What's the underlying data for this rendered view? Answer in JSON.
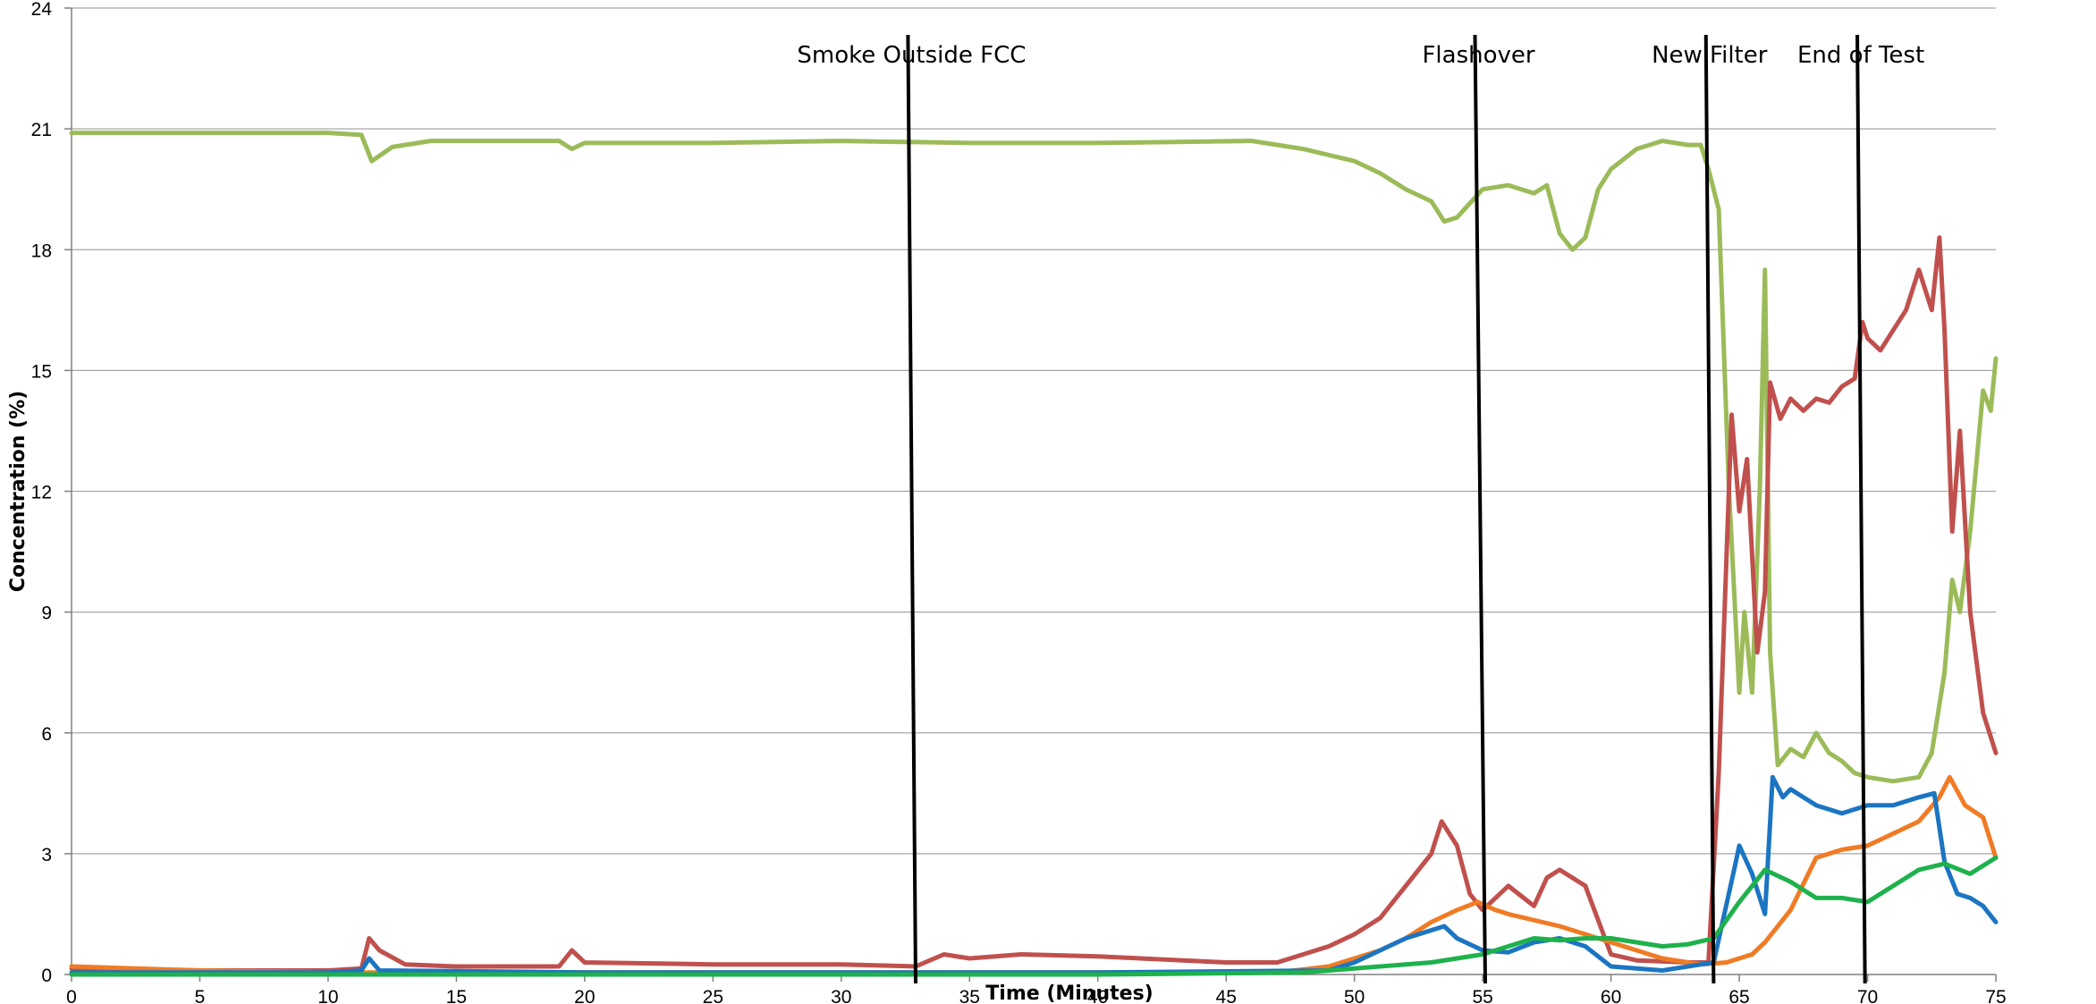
{
  "chart_data": {
    "type": "line",
    "title": "",
    "xlabel": "Time (Minutes)",
    "ylabel": "Concentration (%)",
    "xlim": [
      0,
      75
    ],
    "ylim": [
      0,
      24
    ],
    "x_ticks": [
      0,
      5,
      10,
      15,
      20,
      25,
      30,
      35,
      40,
      45,
      50,
      55,
      60,
      65,
      70,
      75
    ],
    "y_ticks": [
      0,
      3,
      6,
      9,
      12,
      15,
      18,
      21,
      24
    ],
    "grid": true,
    "legend": "none",
    "events": [
      {
        "label": "Smoke Outside FCC",
        "x_top": 32.6,
        "x_bottom": 32.9
      },
      {
        "label": "Flashover",
        "x_top": 54.7,
        "x_bottom": 55.1
      },
      {
        "label": "New Filter",
        "x_top": 63.7,
        "x_bottom": 64.0
      },
      {
        "label": "End of Test",
        "x_top": 69.6,
        "x_bottom": 69.9
      }
    ],
    "series": [
      {
        "color": "#9bbb59",
        "points": [
          [
            0,
            20.9
          ],
          [
            5,
            20.9
          ],
          [
            10,
            20.9
          ],
          [
            11.3,
            20.85
          ],
          [
            11.7,
            20.2
          ],
          [
            12.5,
            20.55
          ],
          [
            14,
            20.7
          ],
          [
            19,
            20.7
          ],
          [
            19.5,
            20.5
          ],
          [
            20,
            20.65
          ],
          [
            25,
            20.65
          ],
          [
            30,
            20.7
          ],
          [
            35,
            20.65
          ],
          [
            40,
            20.65
          ],
          [
            46,
            20.7
          ],
          [
            48,
            20.5
          ],
          [
            50,
            20.2
          ],
          [
            51,
            19.9
          ],
          [
            52,
            19.5
          ],
          [
            53,
            19.2
          ],
          [
            53.5,
            18.7
          ],
          [
            54,
            18.8
          ],
          [
            55,
            19.5
          ],
          [
            56,
            19.6
          ],
          [
            57,
            19.4
          ],
          [
            57.5,
            19.6
          ],
          [
            58,
            18.4
          ],
          [
            58.5,
            18.0
          ],
          [
            59,
            18.3
          ],
          [
            59.5,
            19.5
          ],
          [
            60,
            20.0
          ],
          [
            61,
            20.5
          ],
          [
            62,
            20.7
          ],
          [
            63,
            20.6
          ],
          [
            63.5,
            20.6
          ],
          [
            63.8,
            20.0
          ],
          [
            64.2,
            19.0
          ],
          [
            64.6,
            12.0
          ],
          [
            65,
            7.0
          ],
          [
            65.2,
            9.0
          ],
          [
            65.5,
            7.0
          ],
          [
            65.8,
            12.0
          ],
          [
            66,
            17.5
          ],
          [
            66.2,
            8.0
          ],
          [
            66.5,
            5.2
          ],
          [
            67,
            5.6
          ],
          [
            67.5,
            5.4
          ],
          [
            68,
            6.0
          ],
          [
            68.5,
            5.5
          ],
          [
            69,
            5.3
          ],
          [
            69.5,
            5.0
          ],
          [
            70,
            4.9
          ],
          [
            71,
            4.8
          ],
          [
            72,
            4.9
          ],
          [
            72.5,
            5.5
          ],
          [
            73,
            7.5
          ],
          [
            73.3,
            9.8
          ],
          [
            73.6,
            9.0
          ],
          [
            74,
            11.0
          ],
          [
            74.5,
            14.5
          ],
          [
            74.8,
            14.0
          ],
          [
            75,
            15.3
          ]
        ]
      },
      {
        "color": "#c0504d",
        "points": [
          [
            0,
            0.15
          ],
          [
            5,
            0.1
          ],
          [
            10,
            0.1
          ],
          [
            11.3,
            0.15
          ],
          [
            11.6,
            0.9
          ],
          [
            12,
            0.6
          ],
          [
            13,
            0.25
          ],
          [
            15,
            0.2
          ],
          [
            19,
            0.2
          ],
          [
            19.5,
            0.6
          ],
          [
            20,
            0.3
          ],
          [
            25,
            0.25
          ],
          [
            30,
            0.25
          ],
          [
            32.9,
            0.2
          ],
          [
            34,
            0.5
          ],
          [
            35,
            0.4
          ],
          [
            37,
            0.5
          ],
          [
            40,
            0.45
          ],
          [
            45,
            0.3
          ],
          [
            47,
            0.3
          ],
          [
            48,
            0.5
          ],
          [
            49,
            0.7
          ],
          [
            50,
            1.0
          ],
          [
            51,
            1.4
          ],
          [
            52,
            2.2
          ],
          [
            53,
            3.0
          ],
          [
            53.4,
            3.8
          ],
          [
            54,
            3.2
          ],
          [
            54.5,
            2.0
          ],
          [
            55,
            1.6
          ],
          [
            56,
            2.2
          ],
          [
            57,
            1.7
          ],
          [
            57.5,
            2.4
          ],
          [
            58,
            2.6
          ],
          [
            59,
            2.2
          ],
          [
            60,
            0.5
          ],
          [
            61,
            0.35
          ],
          [
            63,
            0.3
          ],
          [
            63.8,
            0.3
          ],
          [
            64.2,
            5.0
          ],
          [
            64.7,
            13.9
          ],
          [
            65,
            11.5
          ],
          [
            65.3,
            12.8
          ],
          [
            65.7,
            8.0
          ],
          [
            66,
            9.5
          ],
          [
            66.2,
            14.7
          ],
          [
            66.6,
            13.8
          ],
          [
            67,
            14.3
          ],
          [
            67.5,
            14.0
          ],
          [
            68,
            14.3
          ],
          [
            68.5,
            14.2
          ],
          [
            69,
            14.6
          ],
          [
            69.5,
            14.8
          ],
          [
            69.8,
            16.2
          ],
          [
            70,
            15.8
          ],
          [
            70.5,
            15.5
          ],
          [
            71,
            16.0
          ],
          [
            71.5,
            16.5
          ],
          [
            72,
            17.5
          ],
          [
            72.5,
            16.5
          ],
          [
            72.8,
            18.3
          ],
          [
            73,
            16.0
          ],
          [
            73.3,
            11.0
          ],
          [
            73.6,
            13.5
          ],
          [
            74,
            9.0
          ],
          [
            74.5,
            6.5
          ],
          [
            75,
            5.5
          ]
        ]
      },
      {
        "color": "#f07b24",
        "points": [
          [
            0,
            0.2
          ],
          [
            5,
            0.1
          ],
          [
            10,
            0.05
          ],
          [
            20,
            0.05
          ],
          [
            30,
            0.05
          ],
          [
            40,
            0.05
          ],
          [
            47,
            0.05
          ],
          [
            49,
            0.2
          ],
          [
            50,
            0.4
          ],
          [
            51,
            0.6
          ],
          [
            52,
            0.9
          ],
          [
            53,
            1.3
          ],
          [
            54,
            1.6
          ],
          [
            54.8,
            1.8
          ],
          [
            55.5,
            1.6
          ],
          [
            56,
            1.5
          ],
          [
            58,
            1.2
          ],
          [
            60,
            0.8
          ],
          [
            62,
            0.4
          ],
          [
            63.5,
            0.25
          ],
          [
            64.5,
            0.3
          ],
          [
            65.5,
            0.5
          ],
          [
            66,
            0.8
          ],
          [
            67,
            1.6
          ],
          [
            68,
            2.9
          ],
          [
            69,
            3.1
          ],
          [
            70,
            3.2
          ],
          [
            71,
            3.5
          ],
          [
            72,
            3.8
          ],
          [
            72.8,
            4.4
          ],
          [
            73.2,
            4.9
          ],
          [
            73.8,
            4.2
          ],
          [
            74.5,
            3.9
          ],
          [
            75,
            2.9
          ]
        ]
      },
      {
        "color": "#1b75c2",
        "points": [
          [
            0,
            0.05
          ],
          [
            10,
            0.05
          ],
          [
            11.3,
            0.1
          ],
          [
            11.6,
            0.4
          ],
          [
            12,
            0.1
          ],
          [
            20,
            0.05
          ],
          [
            30,
            0.05
          ],
          [
            40,
            0.05
          ],
          [
            49,
            0.1
          ],
          [
            50,
            0.3
          ],
          [
            51,
            0.6
          ],
          [
            52,
            0.9
          ],
          [
            53,
            1.1
          ],
          [
            53.5,
            1.2
          ],
          [
            54,
            0.9
          ],
          [
            55,
            0.6
          ],
          [
            56,
            0.55
          ],
          [
            57,
            0.8
          ],
          [
            58,
            0.9
          ],
          [
            59,
            0.7
          ],
          [
            60,
            0.2
          ],
          [
            62,
            0.1
          ],
          [
            64,
            0.3
          ],
          [
            64.8,
            2.6
          ],
          [
            65,
            3.2
          ],
          [
            65.5,
            2.5
          ],
          [
            66,
            1.5
          ],
          [
            66.3,
            4.9
          ],
          [
            66.7,
            4.4
          ],
          [
            67,
            4.6
          ],
          [
            68,
            4.2
          ],
          [
            69,
            4.0
          ],
          [
            70,
            4.2
          ],
          [
            71,
            4.2
          ],
          [
            72,
            4.4
          ],
          [
            72.6,
            4.5
          ],
          [
            73,
            2.8
          ],
          [
            73.5,
            2.0
          ],
          [
            74,
            1.9
          ],
          [
            74.5,
            1.7
          ],
          [
            75,
            1.3
          ]
        ]
      },
      {
        "color": "#1eb14c",
        "points": [
          [
            0,
            0.0
          ],
          [
            10,
            0.0
          ],
          [
            20,
            0.0
          ],
          [
            30,
            0.0
          ],
          [
            40,
            0.0
          ],
          [
            48,
            0.05
          ],
          [
            50,
            0.15
          ],
          [
            53,
            0.3
          ],
          [
            55,
            0.5
          ],
          [
            57,
            0.9
          ],
          [
            58,
            0.85
          ],
          [
            59,
            0.9
          ],
          [
            60,
            0.9
          ],
          [
            61,
            0.8
          ],
          [
            62,
            0.7
          ],
          [
            63,
            0.75
          ],
          [
            64,
            0.9
          ],
          [
            65,
            1.8
          ],
          [
            66,
            2.6
          ],
          [
            67,
            2.3
          ],
          [
            68,
            1.9
          ],
          [
            69,
            1.9
          ],
          [
            70,
            1.8
          ],
          [
            71,
            2.2
          ],
          [
            72,
            2.6
          ],
          [
            73,
            2.75
          ],
          [
            74,
            2.5
          ],
          [
            75,
            2.9
          ]
        ]
      }
    ]
  }
}
